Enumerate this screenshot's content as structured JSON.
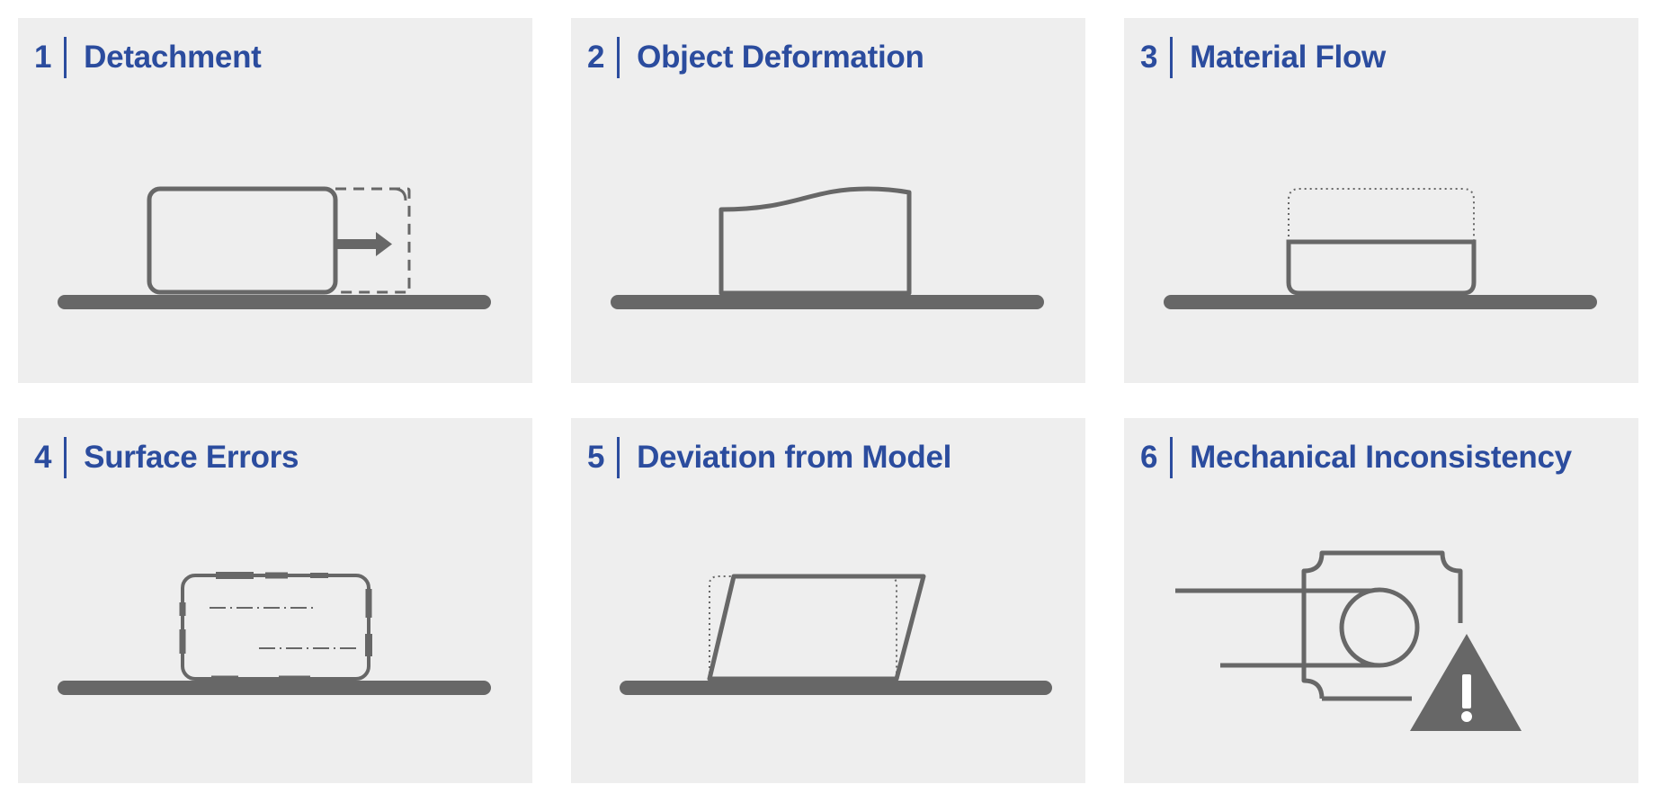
{
  "colors": {
    "title": "#2b4c9e",
    "panel_bg": "#eeeeee",
    "drawing": "#676767"
  },
  "panels": [
    {
      "number": "1",
      "title": "Detachment",
      "icon": "detachment-icon"
    },
    {
      "number": "2",
      "title": "Object Deformation",
      "icon": "object-deformation-icon"
    },
    {
      "number": "3",
      "title": "Material Flow",
      "icon": "material-flow-icon"
    },
    {
      "number": "4",
      "title": "Surface Errors",
      "icon": "surface-errors-icon"
    },
    {
      "number": "5",
      "title": "Deviation from Model",
      "icon": "deviation-from-model-icon"
    },
    {
      "number": "6",
      "title": "Mechanical Inconsistency",
      "icon": "mechanical-inconsistency-icon"
    }
  ]
}
